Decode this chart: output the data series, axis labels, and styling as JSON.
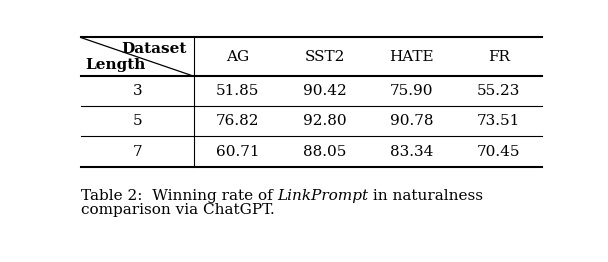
{
  "col_headers": [
    "AG",
    "SST2",
    "HATE",
    "FR"
  ],
  "row_headers": [
    "3",
    "5",
    "7"
  ],
  "row_label": "Length",
  "col_label": "Dataset",
  "values": [
    [
      "51.85",
      "90.42",
      "75.90",
      "55.23"
    ],
    [
      "76.82",
      "92.80",
      "90.78",
      "73.51"
    ],
    [
      "60.71",
      "88.05",
      "83.34",
      "70.45"
    ]
  ],
  "caption_prefix": "Table 2:  Winning rate of ",
  "caption_italic": "LinkPrompt",
  "caption_suffix1": " in naturalness",
  "caption_line2": "comparison via ChatGPT.",
  "background_color": "#ffffff",
  "line_color": "#000000",
  "text_color": "#000000",
  "font_size": 11,
  "caption_font_size": 11
}
